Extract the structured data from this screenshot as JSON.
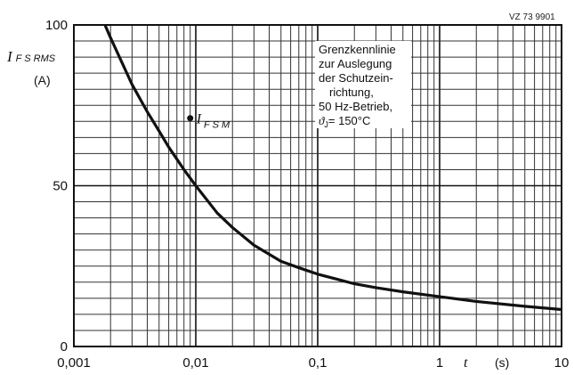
{
  "chart_data": {
    "type": "line",
    "x_scale": "log",
    "xlim": [
      0.001,
      10
    ],
    "ylim": [
      0,
      100
    ],
    "x_ticks": [
      "0,001",
      "0,01",
      "0,1",
      "1",
      "10"
    ],
    "y_ticks": [
      "0",
      "50",
      "100"
    ],
    "grid": true,
    "ylabel": {
      "main": "I",
      "sub": "F S RMS",
      "unit": "(A)"
    },
    "xlabel": {
      "main": "t",
      "unit": "(s)"
    },
    "doc_code": "VZ 73 9901",
    "note_lines": [
      "Grenzkennlinie",
      "zur Auslegung",
      "der Schutzein-",
      "richtung,",
      "50 Hz-Betrieb,",
      "ϑ",
      "J",
      "= 150°C"
    ],
    "annotation": {
      "main": "I",
      "sub": "F S M",
      "x": 0.009,
      "y": 71
    },
    "series": [
      {
        "x": [
          0.0018,
          0.002,
          0.003,
          0.004,
          0.005,
          0.006,
          0.008,
          0.01,
          0.015,
          0.02,
          0.03,
          0.05,
          0.07,
          0.1,
          0.2,
          0.3,
          0.5,
          1,
          2,
          5,
          10
        ],
        "values": [
          100,
          96,
          81.5,
          73,
          67,
          62,
          55,
          50,
          41.5,
          37,
          31.5,
          26.5,
          24.5,
          22.5,
          19.5,
          18.3,
          17,
          15.5,
          14,
          12.5,
          11.5
        ]
      }
    ]
  }
}
